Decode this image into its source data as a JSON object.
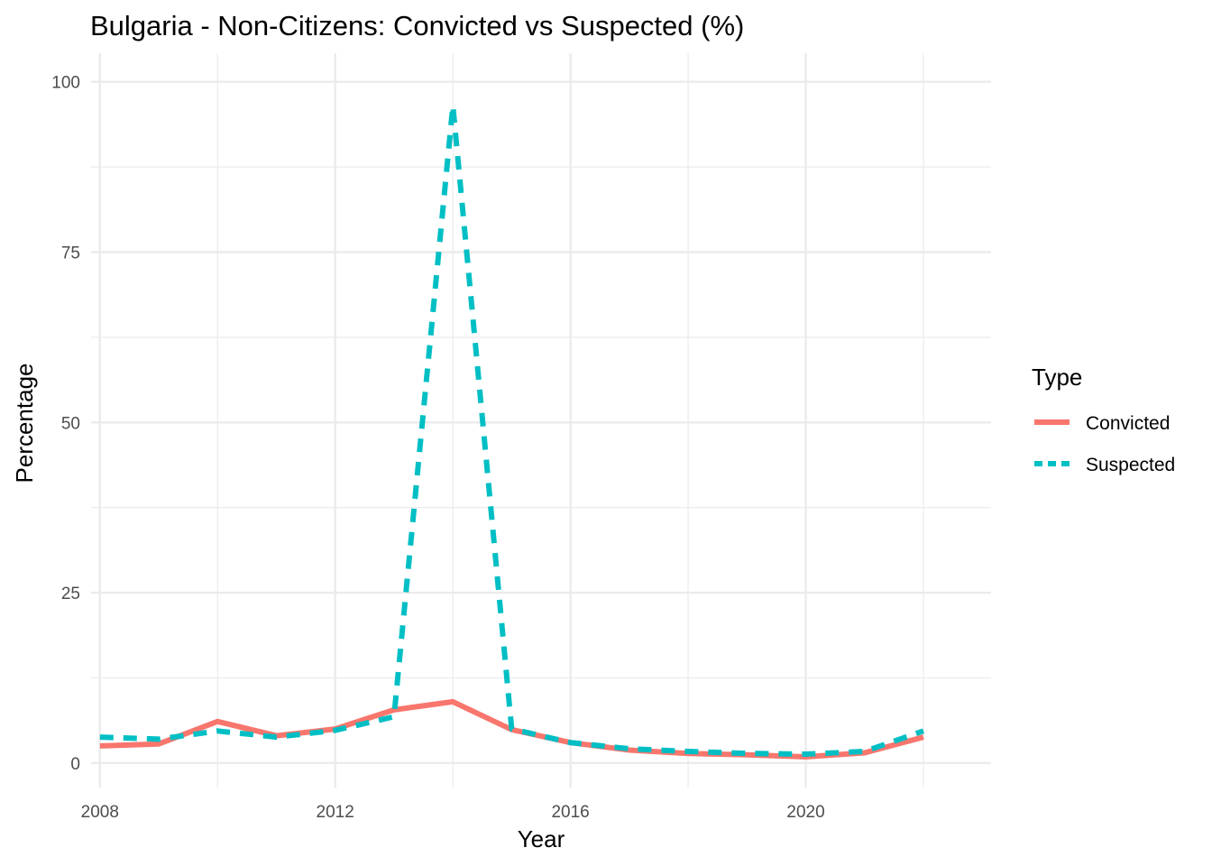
{
  "chart_data": {
    "type": "line",
    "title": "Bulgaria - Non-Citizens: Convicted vs Suspected (%)",
    "xlabel": "Year",
    "ylabel": "Percentage",
    "x": [
      2008,
      2009,
      2010,
      2011,
      2012,
      2013,
      2014,
      2015,
      2016,
      2017,
      2018,
      2019,
      2020,
      2021,
      2022
    ],
    "x_ticks": [
      "2008",
      "2012",
      "2016",
      "2020"
    ],
    "y_ticks": [
      "0",
      "25",
      "50",
      "75",
      "100"
    ],
    "xlim": [
      2007.85,
      2023.15
    ],
    "ylim": [
      -3.6,
      104.2
    ],
    "grid": true,
    "legend_title": "Type",
    "legend_position": "right",
    "series": [
      {
        "name": "Convicted",
        "color": "#F8766D",
        "line_style": "solid",
        "values": [
          2.5,
          2.8,
          6.1,
          4.0,
          5.0,
          7.8,
          9.0,
          4.9,
          3.0,
          1.9,
          1.4,
          1.2,
          0.9,
          1.5,
          3.8
        ]
      },
      {
        "name": "Suspected",
        "color": "#00BFC4",
        "line_style": "dashed",
        "values": [
          3.8,
          3.5,
          4.7,
          3.8,
          4.8,
          6.8,
          96.5,
          5.0,
          3.0,
          2.1,
          1.7,
          1.4,
          1.3,
          1.7,
          4.7
        ]
      }
    ]
  }
}
